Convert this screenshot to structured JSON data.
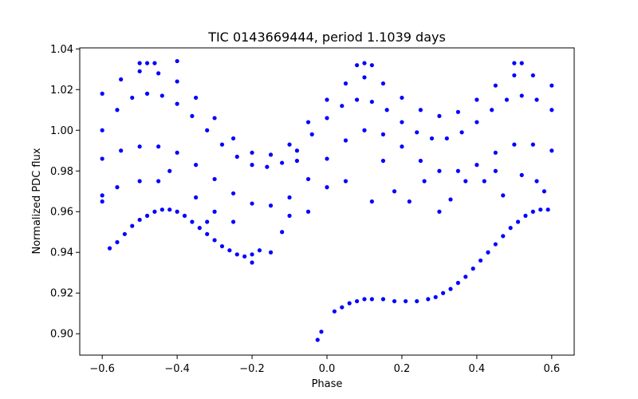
{
  "chart_data": {
    "type": "scatter",
    "title": "TIC 0143669444, period 1.1039 days",
    "xlabel": "Phase",
    "ylabel": "Normalized PDC flux",
    "xlim": [
      -0.66,
      0.66
    ],
    "ylim": [
      0.8895,
      1.0405
    ],
    "xticks": [
      -0.6,
      -0.4,
      -0.2,
      0.0,
      0.2,
      0.4,
      0.6
    ],
    "xtick_labels": [
      "−0.6",
      "−0.4",
      "−0.2",
      "0.0",
      "0.2",
      "0.4",
      "0.6"
    ],
    "yticks": [
      0.9,
      0.92,
      0.94,
      0.96,
      0.98,
      1.0,
      1.02,
      1.04
    ],
    "ytick_labels": [
      "0.90",
      "0.92",
      "0.94",
      "0.96",
      "0.98",
      "1.00",
      "1.02",
      "1.04"
    ],
    "grid": false,
    "marker_color": "#0000ff",
    "series": [
      {
        "points": [
          [
            -0.6,
            1.0
          ],
          [
            -0.56,
            1.01
          ],
          [
            -0.52,
            1.016
          ],
          [
            -0.48,
            1.018
          ],
          [
            -0.44,
            1.017
          ],
          [
            -0.4,
            1.013
          ],
          [
            -0.36,
            1.007
          ],
          [
            -0.32,
            1.0
          ],
          [
            -0.28,
            0.993
          ],
          [
            -0.24,
            0.987
          ],
          [
            -0.2,
            0.983
          ],
          [
            -0.16,
            0.982
          ],
          [
            -0.12,
            0.984
          ],
          [
            -0.08,
            0.99
          ],
          [
            -0.04,
            0.998
          ],
          [
            0.0,
            1.006
          ],
          [
            0.04,
            1.012
          ],
          [
            0.08,
            1.015
          ],
          [
            0.12,
            1.014
          ],
          [
            0.16,
            1.01
          ],
          [
            0.2,
            1.004
          ],
          [
            0.24,
            0.999
          ],
          [
            0.28,
            0.996
          ],
          [
            0.32,
            0.996
          ],
          [
            0.36,
            0.999
          ],
          [
            0.4,
            1.004
          ],
          [
            0.44,
            1.01
          ],
          [
            0.48,
            1.015
          ],
          [
            0.52,
            1.017
          ],
          [
            0.56,
            1.015
          ],
          [
            0.6,
            1.01
          ],
          [
            -0.6,
            1.018
          ],
          [
            -0.55,
            1.025
          ],
          [
            -0.5,
            1.029
          ],
          [
            -0.45,
            1.028
          ],
          [
            -0.4,
            1.024
          ],
          [
            -0.35,
            1.016
          ],
          [
            -0.3,
            1.006
          ],
          [
            -0.25,
            0.996
          ],
          [
            -0.2,
            0.989
          ],
          [
            -0.15,
            0.988
          ],
          [
            -0.1,
            0.993
          ],
          [
            -0.05,
            1.004
          ],
          [
            0.0,
            1.015
          ],
          [
            0.05,
            1.023
          ],
          [
            0.1,
            1.026
          ],
          [
            0.15,
            1.023
          ],
          [
            0.2,
            1.016
          ],
          [
            0.25,
            1.01
          ],
          [
            0.3,
            1.007
          ],
          [
            0.35,
            1.009
          ],
          [
            0.4,
            1.015
          ],
          [
            0.45,
            1.022
          ],
          [
            0.5,
            1.027
          ],
          [
            0.55,
            1.027
          ],
          [
            0.6,
            1.022
          ],
          [
            -0.5,
            1.033
          ],
          [
            -0.48,
            1.033
          ],
          [
            -0.46,
            1.033
          ],
          [
            -0.4,
            1.034
          ],
          [
            0.08,
            1.032
          ],
          [
            0.1,
            1.033
          ],
          [
            0.12,
            1.032
          ],
          [
            0.5,
            1.033
          ],
          [
            0.52,
            1.033
          ],
          [
            -0.6,
            0.986
          ],
          [
            -0.55,
            0.99
          ],
          [
            -0.5,
            0.992
          ],
          [
            -0.45,
            0.992
          ],
          [
            -0.4,
            0.989
          ],
          [
            -0.35,
            0.983
          ],
          [
            -0.3,
            0.976
          ],
          [
            -0.25,
            0.969
          ],
          [
            -0.2,
            0.964
          ],
          [
            -0.15,
            0.963
          ],
          [
            -0.1,
            0.967
          ],
          [
            -0.05,
            0.976
          ],
          [
            0.0,
            0.986
          ],
          [
            0.05,
            0.995
          ],
          [
            0.1,
            1.0
          ],
          [
            0.15,
            0.998
          ],
          [
            0.2,
            0.992
          ],
          [
            0.25,
            0.985
          ],
          [
            0.3,
            0.98
          ],
          [
            0.35,
            0.98
          ],
          [
            0.4,
            0.983
          ],
          [
            0.45,
            0.989
          ],
          [
            0.5,
            0.993
          ],
          [
            0.55,
            0.993
          ],
          [
            0.6,
            0.99
          ],
          [
            -0.6,
            0.965
          ],
          [
            -0.6,
            0.968
          ],
          [
            -0.58,
            0.942
          ],
          [
            -0.56,
            0.945
          ],
          [
            -0.54,
            0.949
          ],
          [
            -0.52,
            0.953
          ],
          [
            -0.5,
            0.956
          ],
          [
            -0.48,
            0.958
          ],
          [
            -0.46,
            0.96
          ],
          [
            -0.44,
            0.961
          ],
          [
            -0.42,
            0.961
          ],
          [
            -0.4,
            0.96
          ],
          [
            -0.38,
            0.958
          ],
          [
            -0.36,
            0.955
          ],
          [
            -0.34,
            0.952
          ],
          [
            -0.32,
            0.949
          ],
          [
            -0.3,
            0.946
          ],
          [
            -0.28,
            0.943
          ],
          [
            -0.26,
            0.941
          ],
          [
            -0.24,
            0.939
          ],
          [
            -0.22,
            0.938
          ],
          [
            -0.2,
            0.939
          ],
          [
            -0.18,
            0.941
          ],
          [
            -0.025,
            0.897
          ],
          [
            -0.015,
            0.901
          ],
          [
            0.02,
            0.911
          ],
          [
            0.04,
            0.913
          ],
          [
            0.06,
            0.915
          ],
          [
            0.08,
            0.916
          ],
          [
            0.1,
            0.917
          ],
          [
            0.12,
            0.917
          ],
          [
            0.15,
            0.917
          ],
          [
            0.18,
            0.916
          ],
          [
            0.21,
            0.916
          ],
          [
            0.24,
            0.916
          ],
          [
            0.27,
            0.917
          ],
          [
            0.29,
            0.918
          ],
          [
            0.31,
            0.92
          ],
          [
            0.33,
            0.922
          ],
          [
            0.35,
            0.925
          ],
          [
            0.37,
            0.928
          ],
          [
            0.39,
            0.932
          ],
          [
            0.41,
            0.936
          ],
          [
            0.43,
            0.94
          ],
          [
            0.45,
            0.944
          ],
          [
            0.47,
            0.948
          ],
          [
            0.49,
            0.952
          ],
          [
            0.51,
            0.955
          ],
          [
            0.53,
            0.958
          ],
          [
            0.55,
            0.96
          ],
          [
            0.57,
            0.961
          ],
          [
            0.59,
            0.961
          ],
          [
            -0.2,
            0.935
          ],
          [
            -0.15,
            0.94
          ],
          [
            -0.35,
            0.967
          ],
          [
            -0.3,
            0.96
          ],
          [
            -0.25,
            0.955
          ],
          [
            -0.12,
            0.95
          ],
          [
            -0.1,
            0.958
          ],
          [
            -0.05,
            0.96
          ],
          [
            0.0,
            0.972
          ],
          [
            0.05,
            0.975
          ],
          [
            0.15,
            0.985
          ],
          [
            0.18,
            0.97
          ],
          [
            0.22,
            0.965
          ],
          [
            0.26,
            0.975
          ],
          [
            0.33,
            0.966
          ],
          [
            0.37,
            0.975
          ],
          [
            0.42,
            0.975
          ],
          [
            0.45,
            0.98
          ],
          [
            0.52,
            0.978
          ],
          [
            0.56,
            0.975
          ],
          [
            0.58,
            0.97
          ],
          [
            -0.45,
            0.975
          ],
          [
            -0.42,
            0.98
          ],
          [
            -0.5,
            0.975
          ],
          [
            -0.56,
            0.972
          ],
          [
            -0.08,
            0.985
          ],
          [
            0.12,
            0.965
          ],
          [
            0.3,
            0.96
          ],
          [
            -0.32,
            0.955
          ],
          [
            0.47,
            0.968
          ]
        ]
      }
    ]
  }
}
